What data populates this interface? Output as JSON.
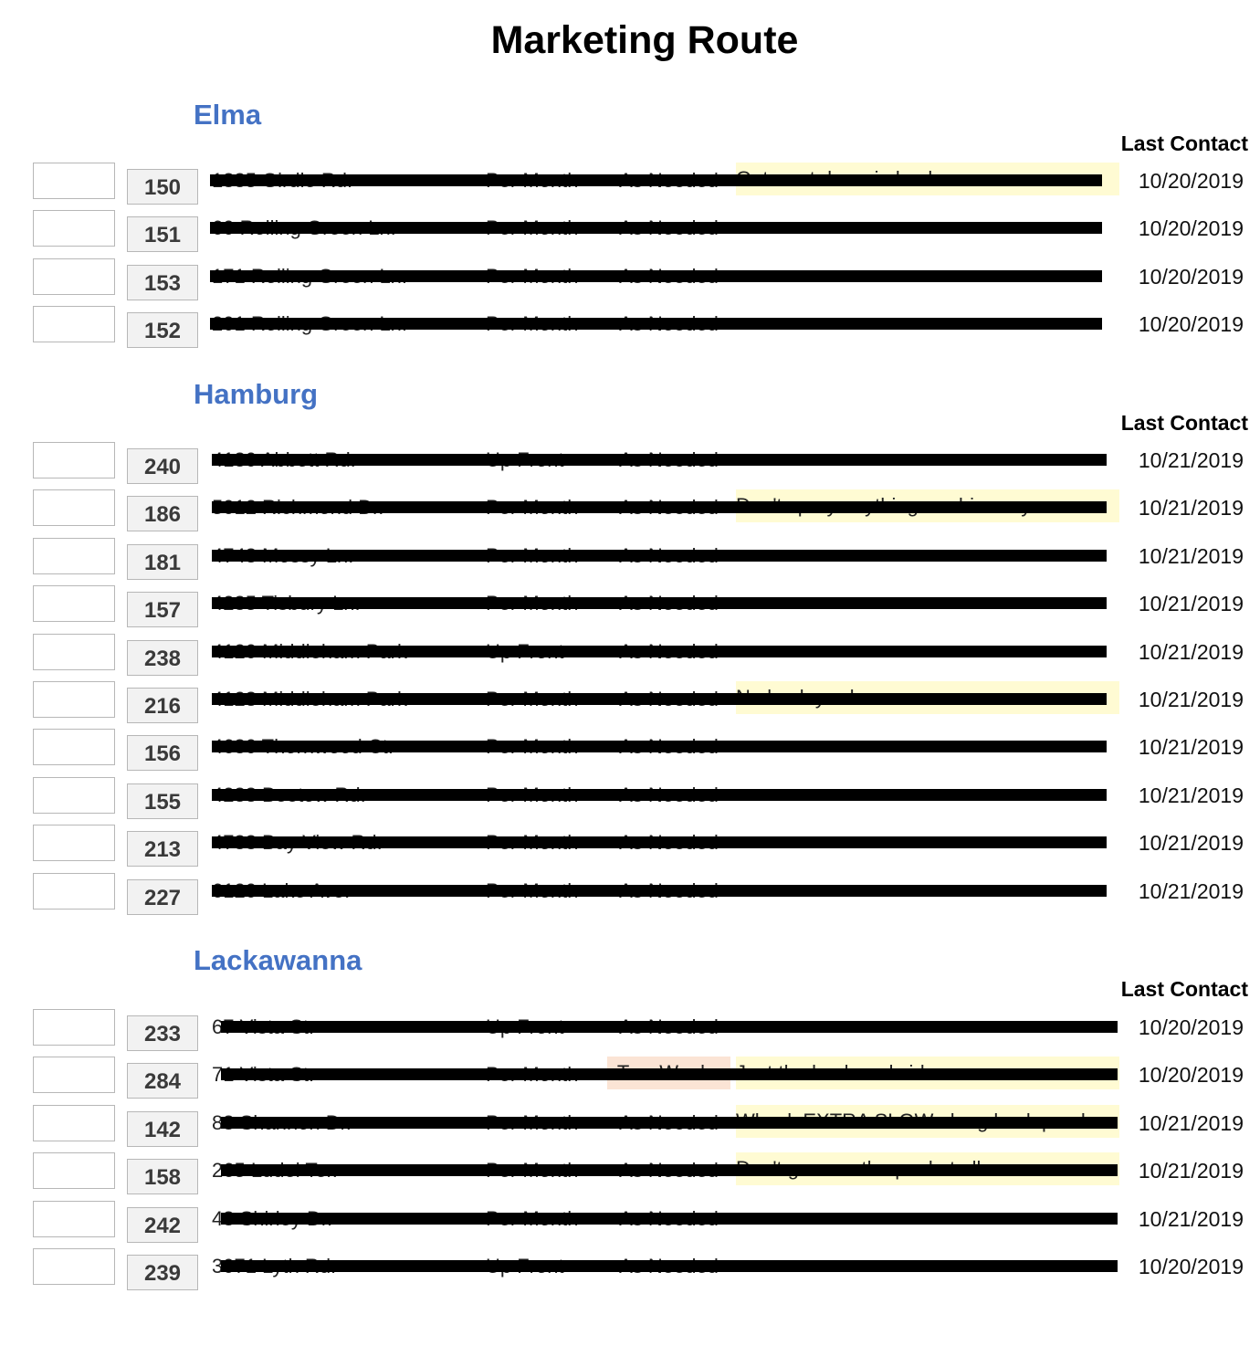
{
  "title": "Marketing Route",
  "sections": [
    {
      "name": "Elma",
      "last_contact_label": "Last Contact",
      "rows": [
        {
          "num": "150",
          "address": "1885 Girdle Rd.",
          "payment": "Per Month",
          "frequency": "As Needed",
          "note": "Gets wet down in back",
          "date": "10/20/2019"
        },
        {
          "num": "151",
          "address": "60 Rolling Green Ln.",
          "payment": "Per Month",
          "frequency": "As Needed",
          "note": "",
          "date": "10/20/2019"
        },
        {
          "num": "153",
          "address": "171 Rolling Green Ln.",
          "payment": "Per Month",
          "frequency": "As Needed",
          "note": "",
          "date": "10/20/2019"
        },
        {
          "num": "152",
          "address": "201 Rolling Green Ln.",
          "payment": "Per Month",
          "frequency": "As Needed",
          "note": "",
          "date": "10/20/2019"
        }
      ]
    },
    {
      "name": "Hamburg",
      "last_contact_label": "Last Contact",
      "rows": [
        {
          "num": "240",
          "address": "4180 Abbott Rd.",
          "payment": "Up Front",
          "frequency": "As Needed",
          "note": "",
          "date": "10/21/2019"
        },
        {
          "num": "186",
          "address": "5012 Richmond Dr.",
          "payment": "Per Month",
          "frequency": "As Needed",
          "note": "Don't spray anything on driveway",
          "date": "10/21/2019"
        },
        {
          "num": "181",
          "address": "4748 Mossy Ln.",
          "payment": "Per Month",
          "frequency": "As Needed",
          "note": "",
          "date": "10/21/2019"
        },
        {
          "num": "157",
          "address": "4235 Tisbury Ln.",
          "payment": "Per Month",
          "frequency": "As Needed",
          "note": "",
          "date": "10/21/2019"
        },
        {
          "num": "238",
          "address": "4120 Middleham Park",
          "payment": "Up Front",
          "frequency": "As Needed",
          "note": "",
          "date": "10/21/2019"
        },
        {
          "num": "216",
          "address": "4128 Middleham Park",
          "payment": "Per Month",
          "frequency": "As Needed",
          "note": "No back yard",
          "date": "10/21/2019"
        },
        {
          "num": "156",
          "address": "4680 Thornwood Ct.",
          "payment": "Per Month",
          "frequency": "As Needed",
          "note": "",
          "date": "10/21/2019"
        },
        {
          "num": "155",
          "address": "4288 Beetow Rd.",
          "payment": "Per Month",
          "frequency": "As Needed",
          "note": "",
          "date": "10/21/2019"
        },
        {
          "num": "213",
          "address": "4783 Bay View Rd.",
          "payment": "Per Month",
          "frequency": "As Needed",
          "note": "",
          "date": "10/21/2019"
        },
        {
          "num": "227",
          "address": "6120 Lake Ave.",
          "payment": "Per Month",
          "frequency": "As Needed",
          "note": "",
          "date": "10/21/2019"
        }
      ]
    },
    {
      "name": "Lackawanna",
      "last_contact_label": "Last Contact",
      "rows": [
        {
          "num": "233",
          "address": "67 Vista St.",
          "payment": "Up Front",
          "frequency": "As Needed",
          "note": "",
          "date": "10/20/2019"
        },
        {
          "num": "284",
          "address": "71 Vista St.",
          "payment": "Per Month",
          "frequency": "Two Weeks",
          "note": "Just the back and sides",
          "date": "10/20/2019"
        },
        {
          "num": "142",
          "address": "88 Shannon Dr.",
          "payment": "Per Month",
          "frequency": "As Needed",
          "note": "Whack EXTRA SLOW along back porch e",
          "date": "10/21/2019"
        },
        {
          "num": "158",
          "address": "265 Ludel Ter.",
          "payment": "Per Month",
          "frequency": "As Needed",
          "note": "Don't go near the pool at all",
          "date": "10/21/2019"
        },
        {
          "num": "242",
          "address": "48 Shirley Dr.",
          "payment": "Per Month",
          "frequency": "As Needed",
          "note": "",
          "date": "10/21/2019"
        },
        {
          "num": "239",
          "address": "3071 Lyth Rd.",
          "payment": "Up Front",
          "frequency": "As Needed",
          "note": "",
          "date": "10/20/2019"
        }
      ]
    }
  ]
}
